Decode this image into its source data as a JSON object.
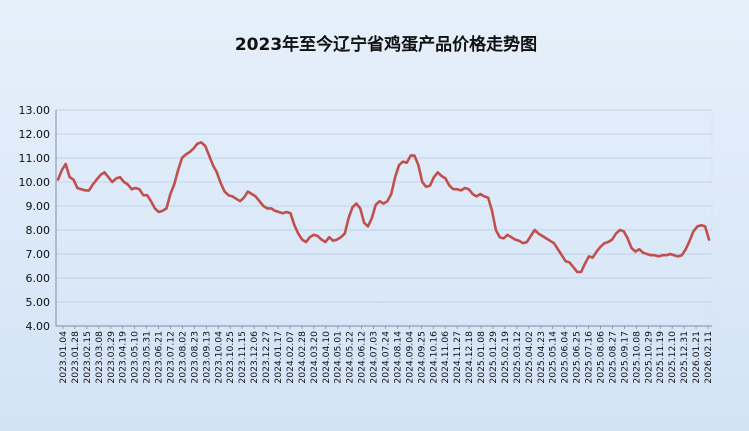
{
  "chart_data": {
    "type": "line",
    "title": "2023年至今辽宁省鸡蛋产品价格走势图",
    "xlabel": "",
    "ylabel": "",
    "ylim": [
      4.0,
      13.0
    ],
    "y_ticks": [
      "4.00",
      "5.00",
      "6.00",
      "7.00",
      "8.00",
      "9.00",
      "10.00",
      "11.00",
      "12.00",
      "13.00"
    ],
    "grid": true,
    "legend": "none",
    "line_color": "#c0504d",
    "x_tick_labels": [
      "2023.01.04",
      "2023.01.28",
      "2023.02.15",
      "2023.03.08",
      "2023.03.29",
      "2023.04.19",
      "2023.05.10",
      "2023.05.31",
      "2023.06.21",
      "2023.07.12",
      "2023.08.02",
      "2023.08.23",
      "2023.09.13",
      "2023.10.04",
      "2023.10.25",
      "2023.11.15",
      "2023.12.06",
      "2023.12.27",
      "2024.01.17",
      "2024.02.07",
      "2024.02.28",
      "2024.03.20",
      "2024.04.10",
      "2024.05.01",
      "2024.05.22",
      "2024.06.12",
      "2024.07.03",
      "2024.07.24",
      "2024.08.14",
      "2024.09.04",
      "2024.09.25",
      "2024.10.16",
      "2024.11.06",
      "2024.11.27",
      "2024.12.18",
      "2025.01.08",
      "2025.01.29",
      "2025.02.19",
      "2025.03.12",
      "2025.04.02",
      "2025.04.23",
      "2025.05.14",
      "2025.06.04",
      "2025.06.25",
      "2025.07.16",
      "2025.08.06",
      "2025.08.27",
      "2025.09.17",
      "2025.10.08",
      "2025.10.29",
      "2025.11.19",
      "2025.12.10",
      "2025.12.31",
      "2026.01.21",
      "2026.02.11"
    ],
    "series": [
      {
        "name": "",
        "values": [
          10.1,
          10.5,
          10.75,
          10.2,
          10.1,
          9.75,
          9.7,
          9.65,
          9.65,
          9.9,
          10.1,
          10.3,
          10.4,
          10.2,
          10.0,
          10.15,
          10.2,
          10.0,
          9.9,
          9.7,
          9.75,
          9.7,
          9.45,
          9.45,
          9.2,
          8.9,
          8.75,
          8.8,
          8.9,
          9.5,
          9.9,
          10.5,
          11.0,
          11.15,
          11.25,
          11.4,
          11.6,
          11.65,
          11.5,
          11.1,
          10.7,
          10.4,
          9.95,
          9.6,
          9.45,
          9.4,
          9.3,
          9.2,
          9.35,
          9.6,
          9.5,
          9.4,
          9.2,
          9.0,
          8.9,
          8.9,
          8.8,
          8.75,
          8.7,
          8.75,
          8.7,
          8.2,
          7.85,
          7.6,
          7.5,
          7.7,
          7.8,
          7.75,
          7.6,
          7.5,
          7.7,
          7.55,
          7.6,
          7.7,
          7.85,
          8.5,
          8.95,
          9.1,
          8.9,
          8.3,
          8.15,
          8.5,
          9.05,
          9.2,
          9.1,
          9.2,
          9.5,
          10.2,
          10.7,
          10.85,
          10.8,
          11.1,
          11.1,
          10.7,
          10.0,
          9.8,
          9.85,
          10.2,
          10.4,
          10.25,
          10.15,
          9.85,
          9.7,
          9.7,
          9.65,
          9.75,
          9.7,
          9.5,
          9.4,
          9.5,
          9.4,
          9.35,
          8.8,
          8.0,
          7.7,
          7.65,
          7.8,
          7.7,
          7.6,
          7.55,
          7.45,
          7.5,
          7.75,
          8.0,
          7.85,
          7.75,
          7.65,
          7.55,
          7.45,
          7.2,
          6.95,
          6.7,
          6.65,
          6.45,
          6.25,
          6.25,
          6.6,
          6.9,
          6.85,
          7.1,
          7.3,
          7.45,
          7.5,
          7.6,
          7.85,
          8.0,
          7.95,
          7.65,
          7.25,
          7.1,
          7.2,
          7.05,
          7.0,
          6.95,
          6.95,
          6.9,
          6.95,
          6.95,
          7.0,
          6.95,
          6.9,
          6.95,
          7.2,
          7.55,
          7.95,
          8.15,
          8.2,
          8.15,
          7.6
        ]
      }
    ]
  }
}
